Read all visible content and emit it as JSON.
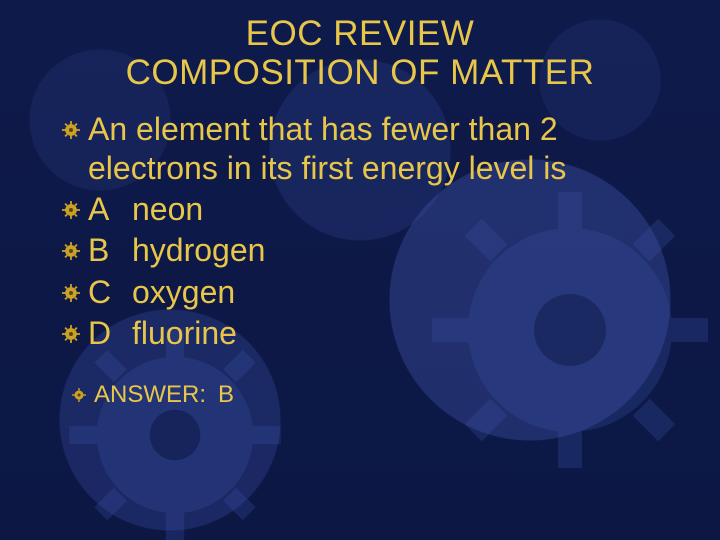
{
  "colors": {
    "background": "#0e1a4a",
    "text": "#e8c64a",
    "bullet_fill": "#c9a227",
    "bullet_shadow": "#5a440c",
    "gear": "#3a52a8"
  },
  "title": {
    "line1": "EOC REVIEW",
    "line2": "COMPOSITION OF MATTER",
    "fontsize": 35
  },
  "question": {
    "lead": "An",
    "text_after_lead": " element that has fewer than 2 electrons in its first energy level is",
    "fontsize": 32
  },
  "options": [
    {
      "letter": "A",
      "text": "neon"
    },
    {
      "letter": "B",
      "text": "hydrogen"
    },
    {
      "letter": "C",
      "text": "oxygen"
    },
    {
      "letter": "D",
      "text": "fluorine"
    }
  ],
  "answer": {
    "label": "ANSWER:",
    "value": "B",
    "fontsize": 24
  }
}
